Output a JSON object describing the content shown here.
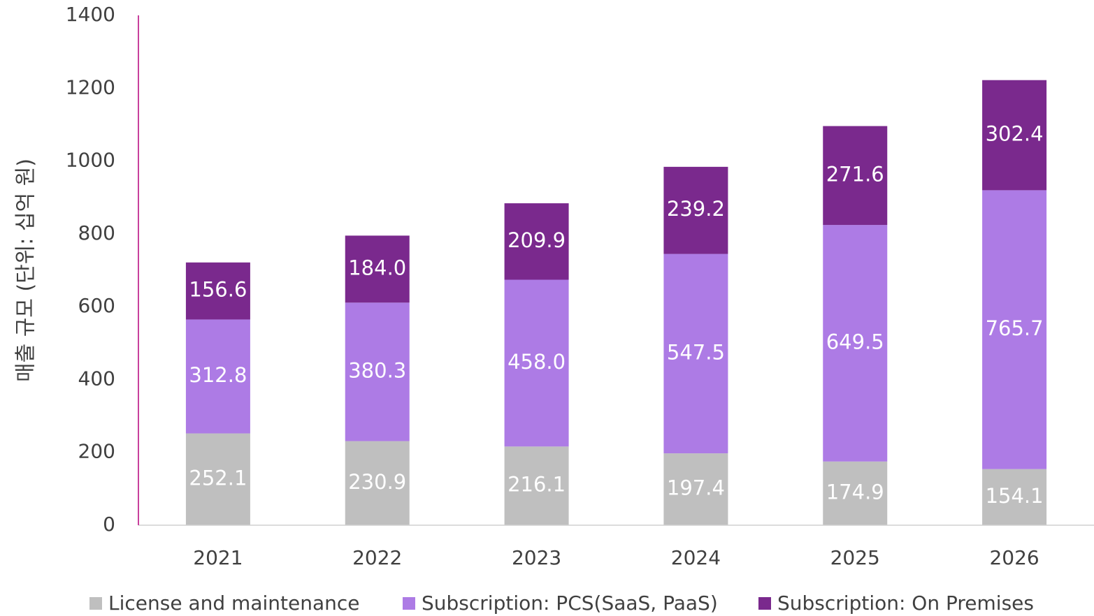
{
  "chart_data": {
    "type": "stacked_bar",
    "y_label": "매출 규모 (단위: 십억 원)",
    "categories": [
      "2021",
      "2022",
      "2023",
      "2024",
      "2025",
      "2026"
    ],
    "series": [
      {
        "name": "License and maintenance",
        "color": "#bfbfbf",
        "values": [
          252.1,
          230.9,
          216.1,
          197.4,
          174.9,
          154.1
        ],
        "value_labels": [
          "252.1",
          "230.9",
          "216.1",
          "197.4",
          "174.9",
          "154.1"
        ]
      },
      {
        "name": "Subscription: PCS(SaaS, PaaS)",
        "color": "#ad7be5",
        "values": [
          312.8,
          380.3,
          458.0,
          547.5,
          649.5,
          765.7
        ],
        "value_labels": [
          "312.8",
          "380.3",
          "458.0",
          "547.5",
          "649.5",
          "765.7"
        ]
      },
      {
        "name": "Subscription: On Premises",
        "color": "#7a298d",
        "values": [
          156.6,
          184.0,
          209.9,
          239.2,
          271.6,
          302.4
        ],
        "value_labels": [
          "156.6",
          "184.0",
          "209.9",
          "239.2",
          "271.6",
          "302.4"
        ]
      }
    ],
    "ylim": [
      0,
      1400
    ],
    "yticks": [
      0,
      200,
      400,
      600,
      800,
      1000,
      1200,
      1400
    ],
    "legend": "bottom"
  }
}
